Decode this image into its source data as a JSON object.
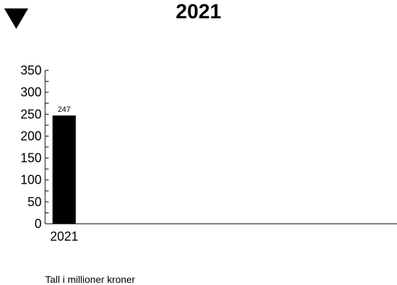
{
  "controls": {
    "collapse_icon": "triangle-down-icon"
  },
  "chart_data": {
    "type": "bar",
    "title": "2021",
    "categories": [
      "2021"
    ],
    "values": [
      247
    ],
    "data_labels": [
      "247"
    ],
    "ylim": [
      0,
      350
    ],
    "yticks": [
      0,
      50,
      100,
      150,
      200,
      250,
      300,
      350
    ],
    "minor_tick_step": 25,
    "xlabel": "",
    "ylabel": "",
    "grid": false,
    "bar_color": "#000000"
  },
  "footnote": "Tall i millioner kroner"
}
